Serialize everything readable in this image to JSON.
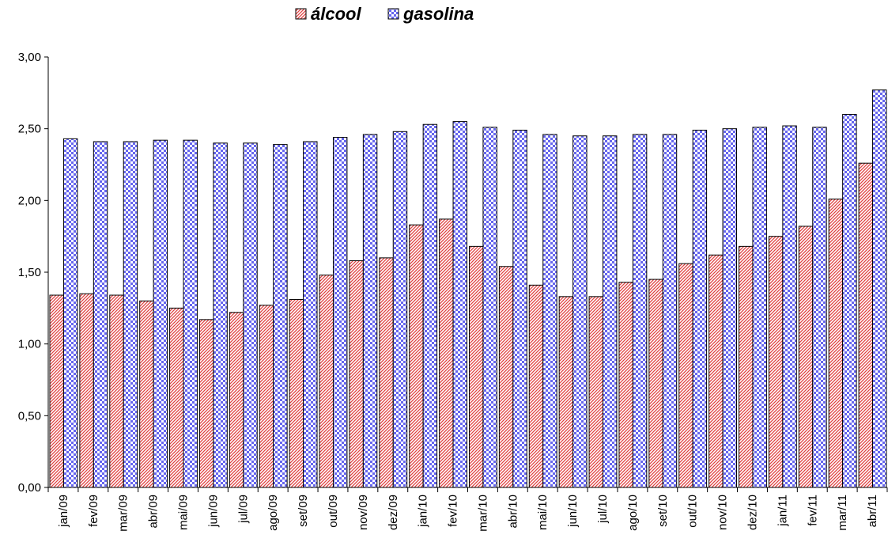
{
  "chart_data": {
    "type": "bar",
    "title": "",
    "xlabel": "",
    "ylabel": "",
    "ylim": [
      0,
      3
    ],
    "yticks": [
      "0,00",
      "0,50",
      "1,00",
      "1,50",
      "2,00",
      "2,50",
      "3,00"
    ],
    "grid": false,
    "legend_position": "top-center",
    "categories": [
      "jan/09",
      "fev/09",
      "mar/09",
      "abr/09",
      "mai/09",
      "jun/09",
      "jul/09",
      "ago/09",
      "set/09",
      "out/09",
      "nov/09",
      "dez/09",
      "jan/10",
      "fev/10",
      "mar/10",
      "abr/10",
      "mai/10",
      "jun/10",
      "jul/10",
      "ago/10",
      "set/10",
      "out/10",
      "nov/10",
      "dez/10",
      "jan/11",
      "fev/11",
      "mar/11",
      "abr/11"
    ],
    "series": [
      {
        "name": "álcool",
        "color": "#e04040",
        "pattern": "diagonal-stripes",
        "values": [
          1.34,
          1.35,
          1.34,
          1.3,
          1.25,
          1.17,
          1.22,
          1.27,
          1.31,
          1.48,
          1.58,
          1.6,
          1.83,
          1.87,
          1.68,
          1.54,
          1.41,
          1.33,
          1.33,
          1.43,
          1.45,
          1.56,
          1.62,
          1.68,
          1.75,
          1.82,
          2.01,
          2.26
        ]
      },
      {
        "name": "gasolina",
        "color": "#6666ee",
        "pattern": "checkerboard",
        "values": [
          2.43,
          2.41,
          2.41,
          2.42,
          2.42,
          2.4,
          2.4,
          2.39,
          2.41,
          2.44,
          2.46,
          2.48,
          2.53,
          2.55,
          2.51,
          2.49,
          2.46,
          2.45,
          2.45,
          2.46,
          2.46,
          2.49,
          2.5,
          2.51,
          2.52,
          2.51,
          2.6,
          2.77
        ]
      }
    ]
  }
}
